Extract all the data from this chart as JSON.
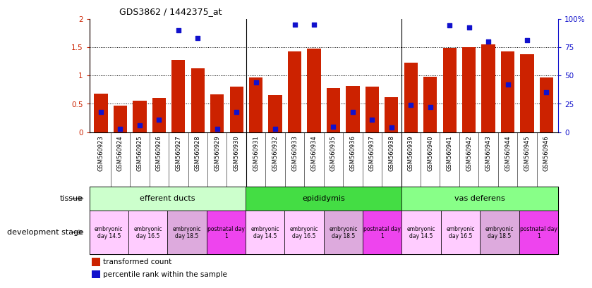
{
  "title": "GDS3862 / 1442375_at",
  "samples": [
    "GSM560923",
    "GSM560924",
    "GSM560925",
    "GSM560926",
    "GSM560927",
    "GSM560928",
    "GSM560929",
    "GSM560930",
    "GSM560931",
    "GSM560932",
    "GSM560933",
    "GSM560934",
    "GSM560935",
    "GSM560936",
    "GSM560937",
    "GSM560938",
    "GSM560939",
    "GSM560940",
    "GSM560941",
    "GSM560942",
    "GSM560943",
    "GSM560944",
    "GSM560945",
    "GSM560946"
  ],
  "transformed_count": [
    0.68,
    0.47,
    0.55,
    0.6,
    1.28,
    1.12,
    0.67,
    0.8,
    0.97,
    0.65,
    1.42,
    1.47,
    0.78,
    0.82,
    0.8,
    0.62,
    1.22,
    0.98,
    1.48,
    1.5,
    1.55,
    1.42,
    1.38,
    0.97
  ],
  "percentile_rank": [
    18,
    3,
    6,
    11,
    90,
    83,
    3,
    18,
    44,
    3,
    95,
    95,
    5,
    18,
    11,
    4,
    24,
    22,
    94,
    92,
    80,
    42,
    81,
    35
  ],
  "bar_color": "#cc2200",
  "dot_color": "#1111cc",
  "tissue_ranges": [
    [
      0,
      8
    ],
    [
      8,
      16
    ],
    [
      16,
      24
    ]
  ],
  "tissue_labels": [
    "efferent ducts",
    "epididymis",
    "vas deferens"
  ],
  "tissue_colors": [
    "#ccffcc",
    "#44dd44",
    "#88ff88"
  ],
  "dev_stage_ranges": [
    [
      0,
      2
    ],
    [
      2,
      4
    ],
    [
      4,
      6
    ],
    [
      6,
      8
    ],
    [
      8,
      10
    ],
    [
      10,
      12
    ],
    [
      12,
      14
    ],
    [
      14,
      16
    ],
    [
      16,
      18
    ],
    [
      18,
      20
    ],
    [
      20,
      22
    ],
    [
      22,
      24
    ]
  ],
  "dev_stage_labels": [
    "embryonic\nday 14.5",
    "embryonic\nday 16.5",
    "embryonic\nday 18.5",
    "postnatal day\n1",
    "embryonic\nday 14.5",
    "embryonic\nday 16.5",
    "embryonic\nday 18.5",
    "postnatal day\n1",
    "embryonic\nday 14.5",
    "embryonic\nday 16.5",
    "embryonic\nday 18.5",
    "postnatal day\n1"
  ],
  "dev_stage_colors": [
    "#ffccff",
    "#ffccff",
    "#ddaadd",
    "#ee44ee",
    "#ffccff",
    "#ffccff",
    "#ddaadd",
    "#ee44ee",
    "#ffccff",
    "#ffccff",
    "#ddaadd",
    "#ee44ee"
  ],
  "ylim_left": [
    0,
    2
  ],
  "ylim_right": [
    0,
    100
  ],
  "yticks_left": [
    0,
    0.5,
    1.0,
    1.5,
    2.0
  ],
  "yticks_right": [
    0,
    25,
    50,
    75,
    100
  ],
  "legend_bar": "transformed count",
  "legend_dot": "percentile rank within the sample",
  "background_color": "#ffffff"
}
